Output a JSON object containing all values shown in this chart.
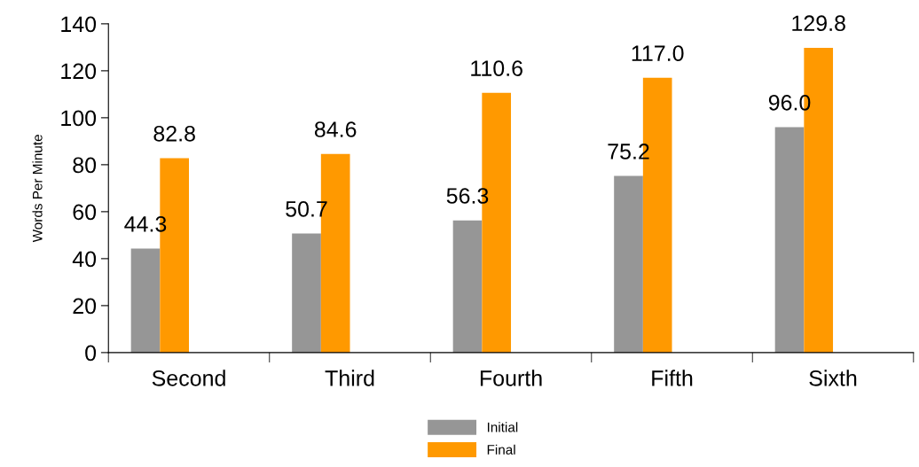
{
  "chart_data": {
    "type": "bar",
    "ylabel": "Words Per Minute",
    "categories": [
      "Second",
      "Third",
      "Fourth",
      "Fifth",
      "Sixth"
    ],
    "series": [
      {
        "name": "Initial",
        "color": "#969696",
        "values": [
          44.3,
          50.7,
          56.3,
          75.2,
          96.0
        ],
        "value_labels": [
          "44.3",
          "50.7",
          "56.3",
          "75.2",
          "96.0"
        ]
      },
      {
        "name": "Final",
        "color": "#ff9900",
        "values": [
          82.8,
          84.6,
          110.6,
          117.0,
          129.8
        ],
        "value_labels": [
          "82.8",
          "84.6",
          "110.6",
          "117.0",
          "129.8"
        ]
      }
    ],
    "ylim": [
      0,
      140
    ],
    "yticks": [
      0,
      20,
      40,
      60,
      80,
      100,
      120,
      140
    ],
    "grid": false,
    "legend": "bottom"
  }
}
